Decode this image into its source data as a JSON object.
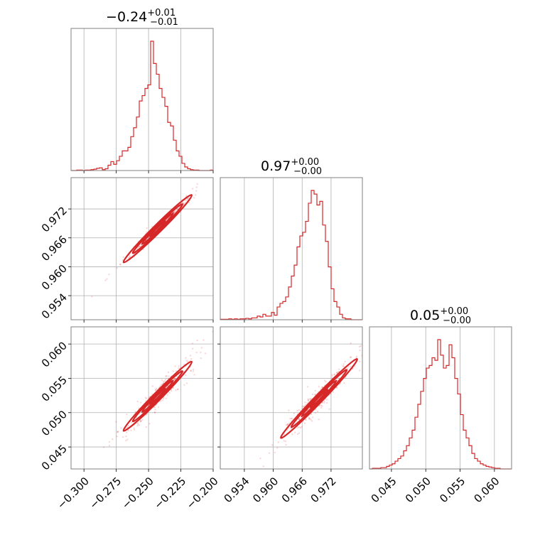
{
  "chart_data": {
    "type": "corner",
    "color": "#d62728",
    "grid": true,
    "params": [
      {
        "title_value": "−0.24",
        "title_plus": "+0.01",
        "title_minus": "−0.01",
        "range": [
          -0.31,
          -0.2
        ]
      },
      {
        "title_value": "0.97",
        "title_plus": "+0.00",
        "title_minus": "−0.00",
        "range": [
          0.949,
          0.9785
        ]
      },
      {
        "title_value": "0.05",
        "title_plus": "+0.00",
        "title_minus": "−0.00",
        "range": [
          0.0418,
          0.0625
        ]
      }
    ],
    "ticks": [
      {
        "values": [
          -0.3,
          -0.275,
          -0.25,
          -0.225,
          -0.2
        ],
        "labels": [
          "−0.300",
          "−0.275",
          "−0.250",
          "−0.225",
          "−0.200"
        ]
      },
      {
        "values": [
          0.954,
          0.96,
          0.966,
          0.972
        ],
        "labels": [
          "0.954",
          "0.960",
          "0.966",
          "0.972"
        ]
      },
      {
        "values": [
          0.045,
          0.05,
          0.055,
          0.06
        ],
        "labels": [
          "0.045",
          "0.050",
          "0.055",
          "0.060"
        ]
      }
    ],
    "histograms": [
      {
        "param": 0,
        "bin_edges_start": -0.31,
        "bin_width": 0.0022,
        "counts": [
          0,
          0,
          0.5,
          0.5,
          0,
          0.5,
          0.5,
          1,
          1.5,
          2.5,
          3,
          1,
          2,
          6,
          10,
          7,
          11,
          16,
          22,
          22,
          26,
          38,
          48,
          60,
          78,
          84,
          92,
          96,
          145,
          120,
          108,
          92,
          82,
          72,
          54,
          50,
          34,
          22,
          16,
          8,
          4,
          2,
          1,
          0.5,
          0.5,
          0,
          0,
          0,
          0,
          0.5
        ],
        "peak": 145
      },
      {
        "param": 1,
        "bin_edges_start": 0.949,
        "bin_width": 0.00059,
        "counts": [
          0.5,
          0.5,
          0.5,
          1,
          0.5,
          1,
          0.5,
          1,
          1,
          1.5,
          1,
          2,
          2,
          4,
          3,
          6,
          4,
          4,
          8,
          5,
          14,
          18,
          20,
          25,
          36,
          48,
          60,
          80,
          92,
          96,
          108,
          128,
          142,
          138,
          126,
          130,
          104,
          86,
          58,
          34,
          20,
          14,
          6,
          2,
          1,
          1,
          0,
          0,
          0,
          0
        ],
        "peak": 142
      },
      {
        "param": 2,
        "bin_edges_start": 0.0418,
        "bin_width": 0.000414,
        "counts": [
          0,
          0.5,
          0.5,
          0.5,
          1,
          1,
          2,
          3,
          4,
          6,
          8,
          10,
          14,
          18,
          24,
          30,
          40,
          50,
          60,
          70,
          78,
          80,
          86,
          84,
          100,
          88,
          78,
          80,
          96,
          86,
          70,
          58,
          42,
          30,
          24,
          18,
          12,
          8,
          6,
          4,
          3,
          2,
          1.5,
          1,
          0.5,
          0.5,
          0,
          0,
          0,
          0
        ],
        "peak": 100
      }
    ],
    "joint": [
      {
        "x": 0,
        "y": 1,
        "slope": 0.265,
        "intercept": 1.0323,
        "spread_along": 0.012,
        "spread_perp": 0.0004
      },
      {
        "x": 0,
        "y": 2,
        "slope": 0.191,
        "intercept": 0.0988,
        "spread_along": 0.012,
        "spread_perp": 0.0007
      },
      {
        "x": 1,
        "y": 2,
        "slope": 0.7258,
        "intercept": -0.6516,
        "spread_along": 0.0036,
        "spread_perp": 0.0007
      }
    ]
  }
}
